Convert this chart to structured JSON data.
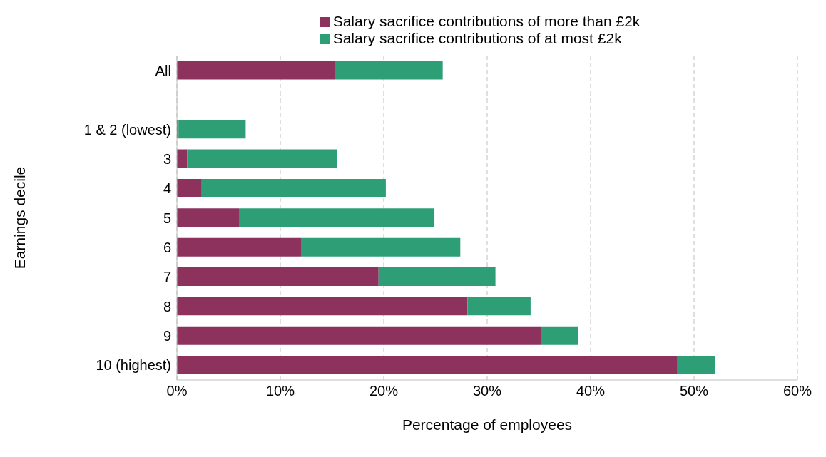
{
  "chart_data": {
    "type": "bar",
    "orientation": "horizontal",
    "stacked": true,
    "xlabel": "Percentage of employees",
    "ylabel": "Earnings decile",
    "categories": [
      "All",
      null,
      "1 & 2 (lowest)",
      "3",
      "4",
      "5",
      "6",
      "7",
      "8",
      "9",
      "10 (highest)"
    ],
    "series": [
      {
        "name": "Salary sacrifice contributions of more than £2k",
        "color": "#8c325c",
        "values": [
          15.3,
          null,
          0.15,
          1.0,
          2.4,
          6.0,
          12.0,
          19.5,
          28.1,
          35.2,
          48.4
        ]
      },
      {
        "name": "Salary sacrifice contributions of at most £2k",
        "color": "#2e9e77",
        "values": [
          10.4,
          null,
          6.5,
          14.5,
          17.8,
          18.9,
          15.4,
          11.3,
          6.1,
          3.6,
          3.6
        ]
      }
    ],
    "xlim": [
      0,
      60
    ],
    "xticks": [
      {
        "value": 0,
        "label": "0%"
      },
      {
        "value": 10,
        "label": "10%"
      },
      {
        "value": 20,
        "label": "20%"
      },
      {
        "value": 30,
        "label": "30%"
      },
      {
        "value": 40,
        "label": "40%"
      },
      {
        "value": 50,
        "label": "50%"
      },
      {
        "value": 60,
        "label": "60%"
      }
    ],
    "grid": "x",
    "legend": "top"
  }
}
